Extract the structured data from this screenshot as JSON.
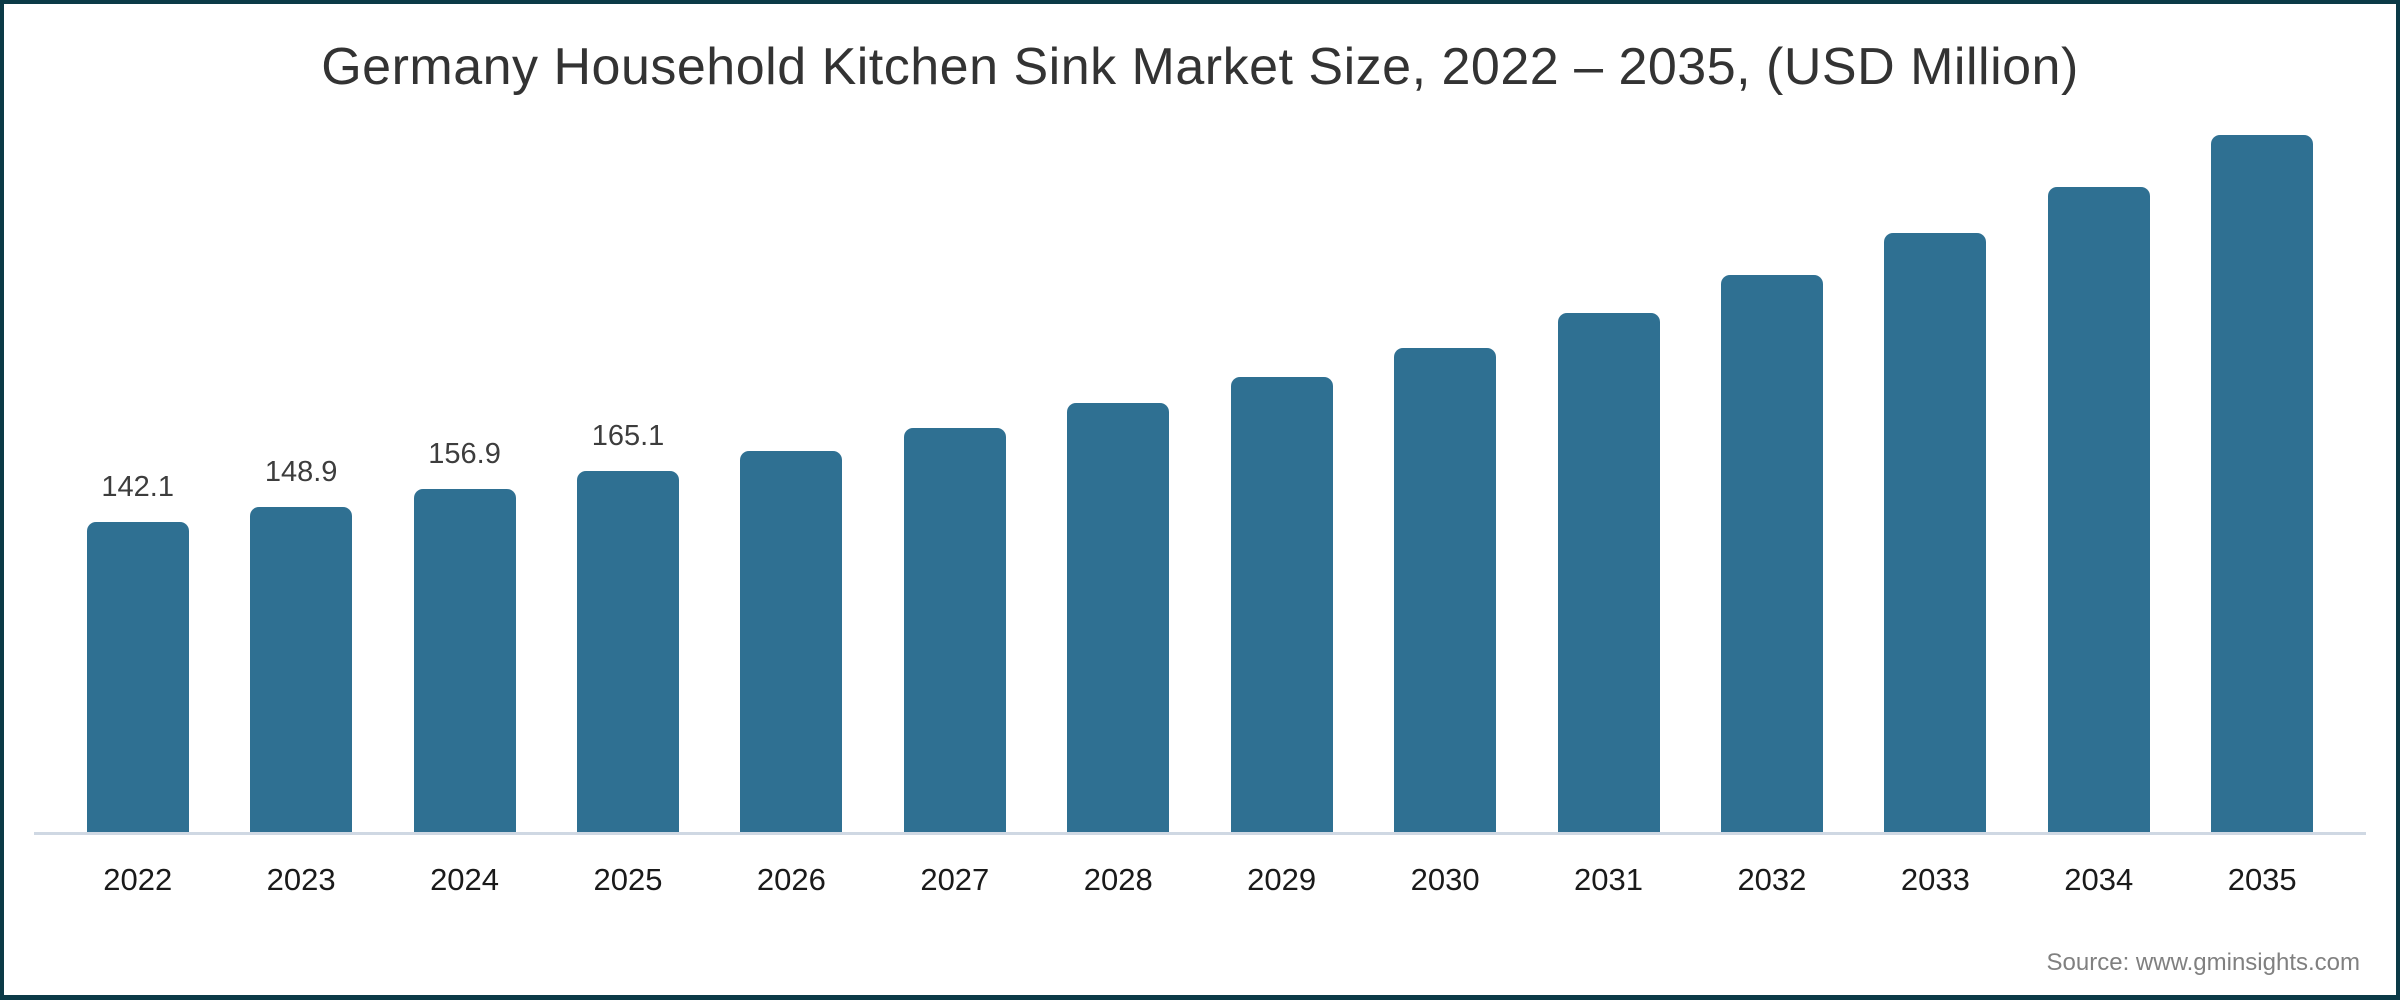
{
  "frame": {
    "title": "Germany Household Kitchen Sink Market Size, 2022 – 2035, (USD Million)",
    "source": "Source: www.gminsights.com"
  },
  "colors": {
    "background": "#ffffff",
    "border": "#0b3a47",
    "bar": "#2f7092",
    "axis_line": "#cfd8e3",
    "title_text": "#333333",
    "value_label_text": "#3d3d3d",
    "year_label_text": "#1a1a1a",
    "source_text": "#808080"
  },
  "chart_data": {
    "type": "bar",
    "title": "Germany Household Kitchen Sink Market Size, 2022 – 2035, (USD Million)",
    "unit": "USD Million",
    "categories": [
      "2022",
      "2023",
      "2024",
      "2025",
      "2026",
      "2027",
      "2028",
      "2029",
      "2030",
      "2031",
      "2032",
      "2033",
      "2034",
      "2035"
    ],
    "values": [
      142.1,
      148.9,
      156.9,
      165.1,
      174.4,
      185.0,
      196.4,
      208.3,
      221.6,
      237.6,
      255.0,
      274.3,
      295.3,
      319.1
    ],
    "data_labels": [
      "142.1",
      "148.9",
      "156.9",
      "165.1",
      "",
      "",
      "",
      "",
      "",
      "",
      "",
      "",
      "",
      ""
    ],
    "xlabel": "",
    "ylabel": "",
    "ylim": [
      0,
      330
    ],
    "grid": false,
    "legend": false,
    "bar_color": "#2f7092",
    "source": "Source: www.gminsights.com"
  }
}
